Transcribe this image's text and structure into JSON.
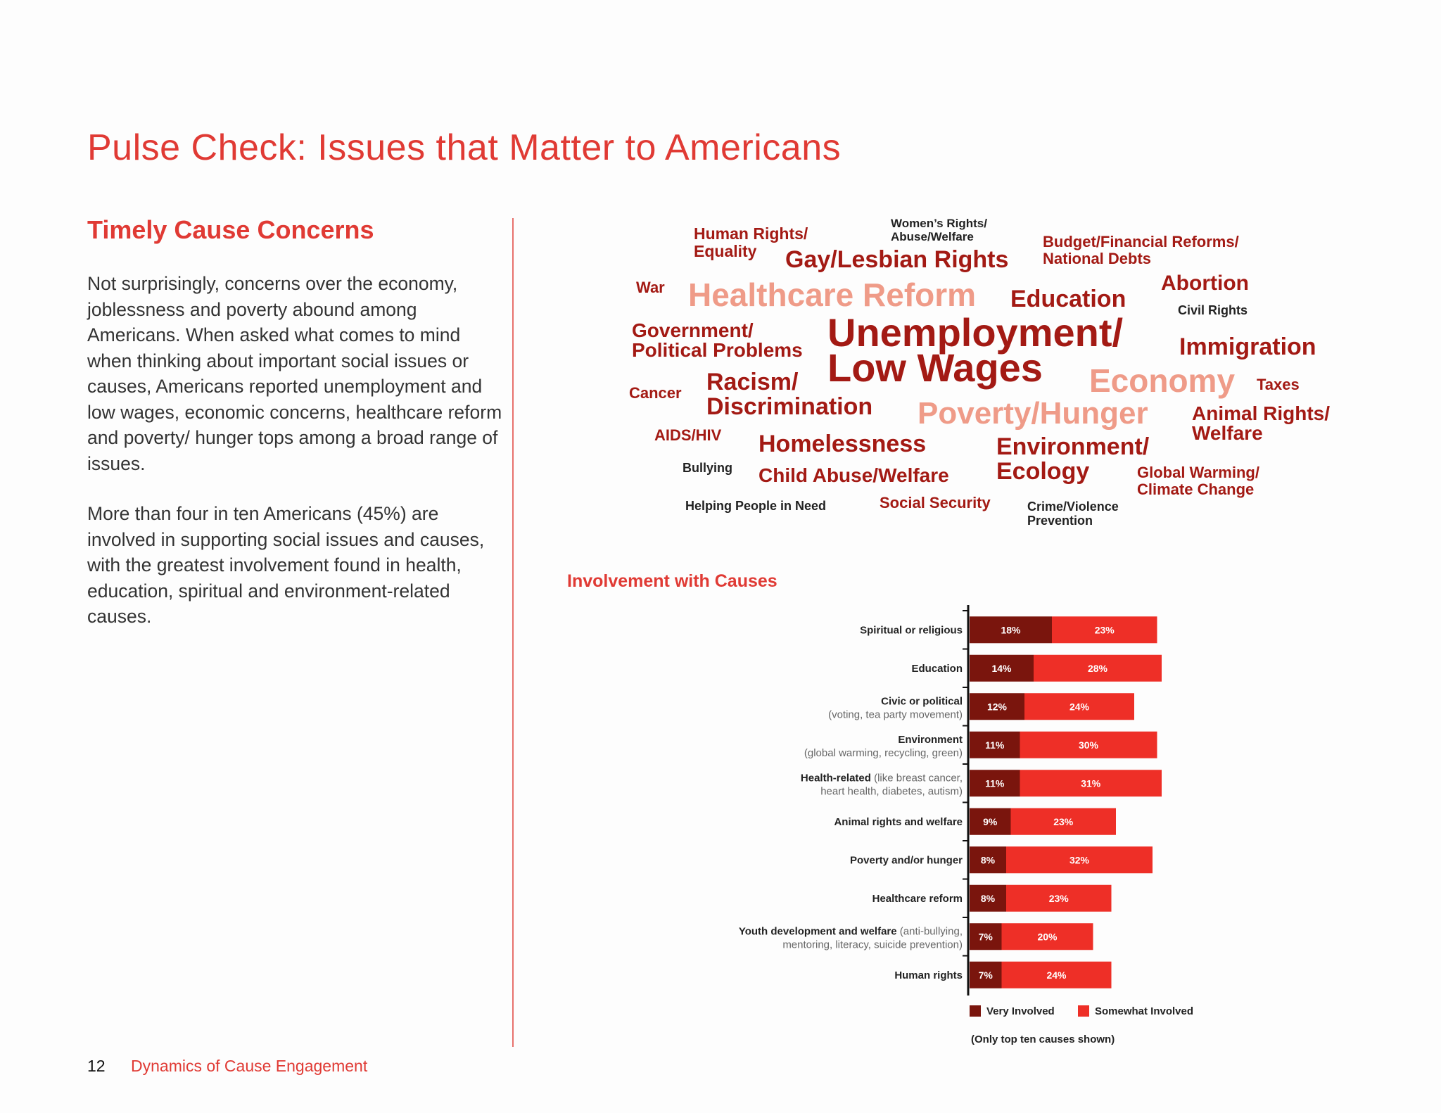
{
  "page_title": "Pulse Check: Issues that Matter to Americans",
  "section_heading": "Timely Cause Concerns",
  "paragraphs": [
    "Not surprisingly, concerns over the economy, joblessness and poverty abound among Americans. When asked what comes to mind when thinking about important social issues or causes, Americans reported unemployment and low wages, economic concerns, healthcare reform and poverty/ hunger tops among a broad range of issues.",
    "More than four in ten Americans (45%) are involved in supporting social issues and causes, with the greatest involvement found in health, education, spiritual and environment-related causes."
  ],
  "word_cloud": {
    "human_rights": [
      "Human Rights/",
      "Equality"
    ],
    "womens_rights": [
      "Women’s Rights/",
      "Abuse/Welfare"
    ],
    "gay_rights": "Gay/Lesbian Rights",
    "budget": [
      "Budget/Financial Reforms/",
      "National Debts"
    ],
    "war": "War",
    "healthcare_reform": "Healthcare Reform",
    "education": "Education",
    "abortion": "Abortion",
    "civil_rights": "Civil Rights",
    "government": [
      "Government/",
      "Political Problems"
    ],
    "unemployment": [
      "Unemployment/",
      "Low Wages"
    ],
    "immigration": "Immigration",
    "cancer": "Cancer",
    "racism": [
      "Racism/",
      "Discrimination"
    ],
    "economy": "Economy",
    "taxes": "Taxes",
    "poverty": "Poverty/Hunger",
    "animal_rights": [
      "Animal Rights/",
      "Welfare"
    ],
    "aids": "AIDS/HIV",
    "homelessness": "Homelessness",
    "environment": [
      "Environment/",
      "Ecology"
    ],
    "bullying": "Bullying",
    "child_abuse": "Child Abuse/Welfare",
    "global_warming": [
      "Global Warming/",
      "Climate Change"
    ],
    "helping_people": "Helping People in Need",
    "social_security": "Social Security",
    "crime": [
      "Crime/Violence",
      "Prevention"
    ]
  },
  "chart_data": {
    "type": "bar",
    "stacked": true,
    "orientation": "horizontal",
    "title": "Involvement with Causes",
    "categories": [
      {
        "label": "Spiritual or religious",
        "note": ""
      },
      {
        "label": "Education",
        "note": ""
      },
      {
        "label": "Civic or political",
        "note": "(voting, tea party movement)"
      },
      {
        "label": "Environment",
        "note": "(global warming, recycling, green)"
      },
      {
        "label": "Health-related",
        "note": "(like breast cancer,",
        "note2": "heart health, diabetes, autism)"
      },
      {
        "label": "Animal rights and welfare",
        "note": ""
      },
      {
        "label": "Poverty and/or hunger",
        "note": ""
      },
      {
        "label": "Healthcare reform",
        "note": ""
      },
      {
        "label": "Youth development and welfare",
        "note": "(anti-bullying,",
        "note2": "mentoring, literacy, suicide prevention)"
      },
      {
        "label": "Human rights",
        "note": ""
      }
    ],
    "series": [
      {
        "name": "Very Involved",
        "color": "#7a150d",
        "values": [
          18,
          14,
          12,
          11,
          11,
          9,
          8,
          8,
          7,
          7
        ]
      },
      {
        "name": "Somewhat Involved",
        "color": "#ee2f27",
        "values": [
          23,
          28,
          24,
          30,
          31,
          23,
          32,
          23,
          20,
          24
        ]
      }
    ],
    "value_suffix": "%",
    "xlim": [
      0,
      45
    ],
    "legend_position": "bottom",
    "footnote": "(Only top ten causes shown)"
  },
  "footer": {
    "page_number": "12",
    "publication": "Dynamics of Cause Engagement"
  }
}
